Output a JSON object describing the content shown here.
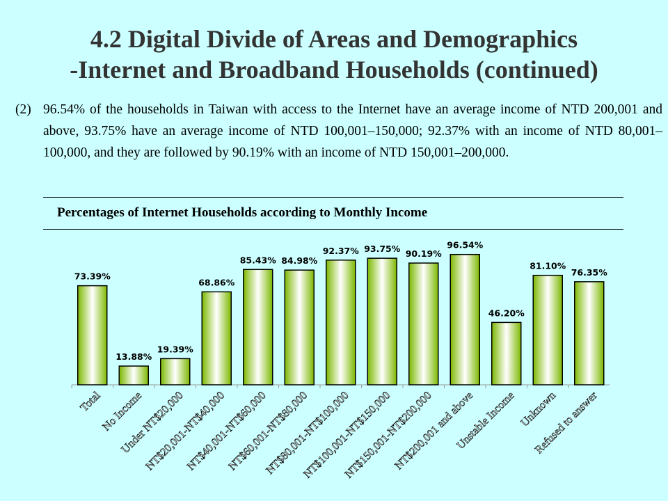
{
  "heading": {
    "line1": "4.2 Digital Divide of Areas and Demographics",
    "line2": "-Internet and Broadband Households (continued)"
  },
  "paragraph": {
    "number": "(2)",
    "text": "96.54% of the households in Taiwan with access to the Internet have an average income of NTD 200,001 and above, 93.75% have an average income of NTD 100,001–150,000; 92.37% with an income of NTD 80,001–100,000, and they are followed by 90.19% with an income of NTD 150,001–200,000."
  },
  "colors": {
    "background": "#ccffff",
    "bar_edge": "#7cb800",
    "bar_center": "#ffffff",
    "bar_outline": "#000000"
  },
  "chart_data": {
    "type": "bar",
    "title": "Percentages of Internet Households according to Monthly Income",
    "xlabel": "",
    "ylabel": "",
    "ylim": [
      0,
      100
    ],
    "grid": false,
    "legend": "none",
    "categories": [
      "Total",
      "No Income",
      "Under NT$20,000",
      "NT$20,001-NT$40,000",
      "NT$40,001-NT$60,000",
      "NT$60,001-NT$80,000",
      "NT$80,001-NT$100,000",
      "NT$100,001-NT$150,000",
      "NT$150,001-NT$200,000",
      "NT$200,001 and above",
      "Unstable Income",
      "Unknown",
      "Refused to answer"
    ],
    "values": [
      73.39,
      13.88,
      19.39,
      68.86,
      85.43,
      84.98,
      92.37,
      93.75,
      90.19,
      96.54,
      46.2,
      81.1,
      76.35
    ],
    "data_labels": [
      "73.39%",
      "13.88%",
      "19.39%",
      "68.86%",
      "85.43%",
      "84.98%",
      "92.37%",
      "93.75%",
      "90.19%",
      "96.54%",
      "46.20%",
      "81.10%",
      "76.35%"
    ]
  }
}
